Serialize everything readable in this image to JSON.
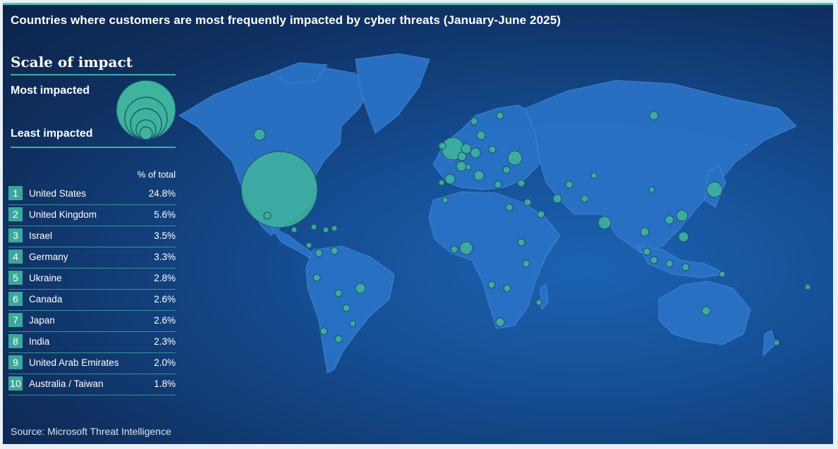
{
  "header": {
    "title": "Countries where customers are most frequently impacted by cyber threats  (January-June 2025)"
  },
  "legend": {
    "scale_title": "Scale of impact",
    "most_label": "Most impacted",
    "least_label": "Least impacted",
    "bubble_color": "#3fb39d"
  },
  "table": {
    "pct_header": "% of total",
    "rows": [
      {
        "rank": "1",
        "country": "United States",
        "pct": "24.8%"
      },
      {
        "rank": "2",
        "country": "United Kingdom",
        "pct": "5.6%"
      },
      {
        "rank": "3",
        "country": "Israel",
        "pct": "3.5%"
      },
      {
        "rank": "4",
        "country": "Germany",
        "pct": "3.3%"
      },
      {
        "rank": "5",
        "country": "Ukraine",
        "pct": "2.8%"
      },
      {
        "rank": "6",
        "country": "Canada",
        "pct": "2.6%"
      },
      {
        "rank": "7",
        "country": "Japan",
        "pct": "2.6%"
      },
      {
        "rank": "8",
        "country": "India",
        "pct": "2.3%"
      },
      {
        "rank": "9",
        "country": "United Arab Emirates",
        "pct": "2.0%"
      },
      {
        "rank": "10",
        "country": "Australia / Taiwan",
        "pct": "1.8%"
      }
    ]
  },
  "footer": {
    "source": "Source: Microsoft Threat Intelligence"
  },
  "colors": {
    "accent": "#4fc3b3",
    "land": "#2a74c8",
    "ocean": "#154d92"
  }
}
